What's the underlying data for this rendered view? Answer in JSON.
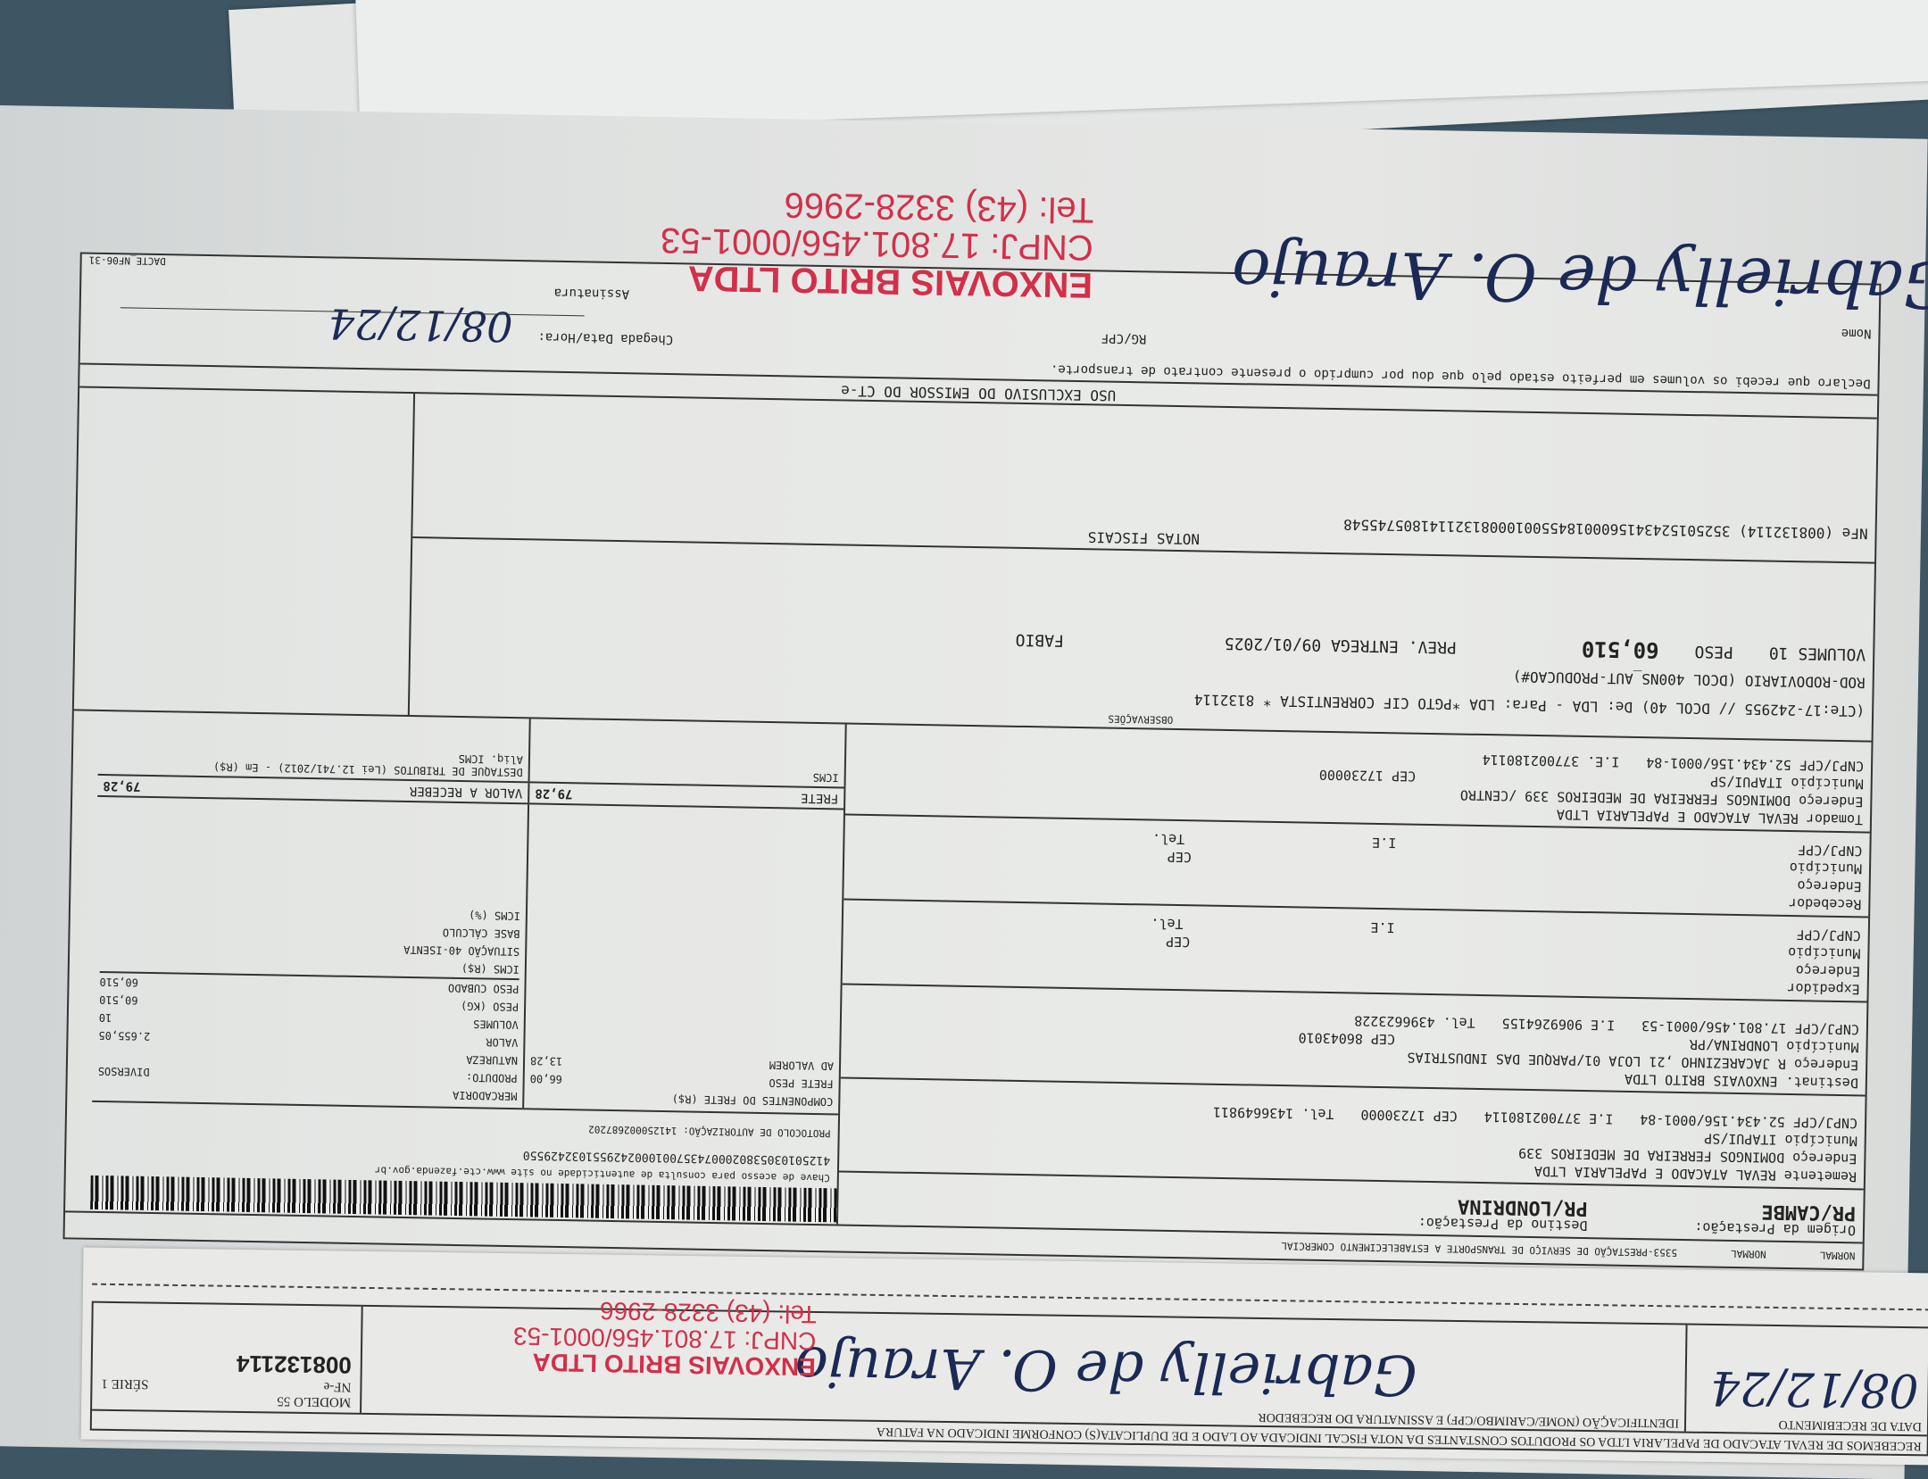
{
  "document": {
    "header": {
      "type1": "NORMAL",
      "type2": "NORMAL",
      "cfop": "5353-PRESTAÇÃO DE SERVIÇO DE TRANSPORTE A ESTABELECIMENTO COMERCIAL"
    },
    "origem_label": "Origem da Prestação:",
    "origem": "PR/CAMBE",
    "destino_label": "Destino da Prestação:",
    "destino": "PR/LONDRINA",
    "remetente": {
      "nome": "Remetente REVAL ATACADO E PAPELARIA LTDA",
      "endereco": "Endereço DOMINGOS  FERREIRA DE MEDEIROS  339",
      "municipio": "Município ITAPUI/SP",
      "cnpj": "CNPJ/CPF 52.434.156/0001-84",
      "ie": "I.E 377002180114",
      "cep": "CEP  17230000",
      "tel": "Tel. 1436649811"
    },
    "destinatario": {
      "nome": "Destinat. ENXOVAIS BRITO LTDA",
      "endereco": "Endereço R JACAREZINHO ,21 LOJA 01/PARQUE DAS INDUSTRIAS",
      "municipio": "Município LONDRINA/PR",
      "cep": "CEP  86043010",
      "cnpj": "CNPJ/CPF 17.801.456/0001-53",
      "ie": "I.E 9069264155",
      "tel": "Tel. 4396623228"
    },
    "expedidor": {
      "nome": "Expedidor",
      "endereco": "Endereço",
      "municipio": "Município",
      "cnpj": "CNPJ/CPF",
      "ie": "I.E",
      "cep": "CEP",
      "tel": "Tel."
    },
    "recebedor": {
      "nome": "Recebedor",
      "endereco": "Endereço",
      "municipio": "Município",
      "cnpj": "CNPJ/CPF",
      "ie": "I.E",
      "cep": "CEP",
      "tel": "Tel."
    },
    "tomador": {
      "nome": "Tomador  REVAL ATACADO E PAPELARIA LTDA",
      "endereco": "Endereço DOMINGOS  FERREIRA DE MEDEIROS  339        /CENTRO",
      "municipio": "Município ITAPUI/SP",
      "cep": "CEP  17230000",
      "cnpj": "CNPJ/CPF 52.434.156/0001-84",
      "ie": "I.E.  377002180114"
    },
    "chave_label": "Chave de acesso para consulta de autenticidade no site www.cte.fazenda.gov.br",
    "chave": "41250103053802000743570010002429551032429550",
    "protocolo_label": "PROTOCOLO DE AUTORIZAÇÃO:",
    "protocolo": "141250002687202",
    "componentes_label": "COMPONENTES DO FRETE (R$)",
    "frete_peso_label": "FRETE PESO",
    "frete_peso": "66,00",
    "ad_valorem_label": "AD VALOREM",
    "ad_valorem": "13,28",
    "mercadoria_label": "MERCADORIA",
    "produto_label": "PRODUTO:",
    "produto": "DIVERSOS",
    "natureza_label": "NATUREZA",
    "valor_label": "VALOR",
    "valor": "2.655,05",
    "volumes_label": "VOLUMES",
    "volumes": "10",
    "peso_label": "PESO (KG)",
    "peso": "60,510",
    "peso_cubado_label": "PESO CUBADO",
    "peso_cubado": "60,510",
    "situacao": "SITUAÇÃO 40-ISENTA",
    "icms_rs_label": "ICMS (R$)",
    "base_calculo_label": "BASE CÁLCULO",
    "icms_pct_label": "ICMS (%)",
    "frete_label": "FRETE",
    "frete": "79,28",
    "valor_receber_label": "VALOR A RECEBER",
    "valor_receber": "79,28",
    "icms_label": "ICMS",
    "destaque_label": "DESTAQUE DE TRIBUTOS (Lei 12.741/2012) - Em (R$)",
    "aliq_label": "Aliq. ICMS",
    "obs_label": "OBSERVAÇÕES",
    "obs1": "(CTe:17-242955 // DCOL 40)    De: LDA - Para: LDA *PGTO CIF CORRENTISTA * 8132114",
    "obs2": "ROD-RODOVIARIO (DCOL 400NS_AUT-PRODUCAO#)",
    "obs_volumes": "VOLUMES  10",
    "obs_peso_label": "PESO",
    "obs_peso": "60,510",
    "prev_entrega": "PREV. ENTREGA  09/01/2025",
    "fabio": "FABIO",
    "notas_label": "NOTAS FISCAIS",
    "nfe": "NFe (008132114) 352501524341560001845500100081321141805745548",
    "uso_exclusivo": "USO EXCLUSIVO DO EMISSOR DO CT-e",
    "declaro": "Declaro que recebi os volumes em perfeito estado pelo que dou por cumprido o presente contrato de transporte.",
    "nome_label": "Nome",
    "rgcpf_label": "RG/CPF",
    "chegada_label": "Chegada Data/Hora:",
    "chegada": "08/12/24",
    "assinatura_label": "Assinatura",
    "dacte": "DACTE_NF06-31"
  },
  "slip": {
    "recebemos": "RECEBEMOS DE REVAL ATACADO DE PAPELARIA LTDA OS PRODUTOS CONSTANTES DA NOTA FISCAL INDICADA AO LADO E DE DUPLICATA(S) CONFORME INDICADO NA FATURA",
    "data_label": "DATA DE RECEBIMENTO",
    "data": "08/12/24",
    "ident_label": "IDENTIFICAÇÃO (NOME/CARIMBO/CPF) E ASSINATURA DO RECEBEDOR",
    "modelo": "MODELO 55",
    "nfe_label": "NF-e",
    "serie": "SÉRIE 1",
    "numero": "008132114"
  },
  "stamp": {
    "name": "ENXOVAIS BRITO LTDA",
    "cnpj": "CNPJ: 17.801.456/0001-53",
    "tel": "Tel: (43) 3328-2966",
    "color": "#d2304a"
  },
  "signature": "Gabrielly de O. Araujo"
}
